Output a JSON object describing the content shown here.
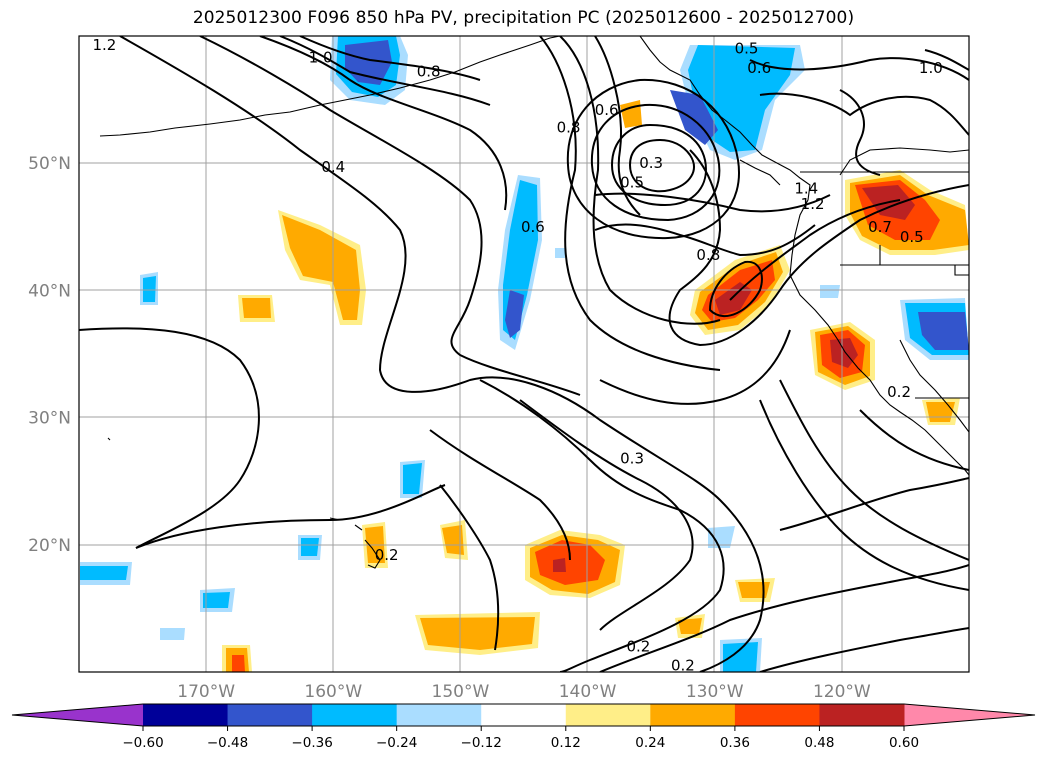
{
  "title": "2025012300 F096 850 hPa PV, precipitation PC (2025012600 - 2025012700)",
  "map": {
    "lon_range": [
      -180,
      -110
    ],
    "lat_range": [
      10,
      60
    ],
    "lat_ticks": [
      {
        "value": 20,
        "label": "20°N"
      },
      {
        "value": 30,
        "label": "30°N"
      },
      {
        "value": 40,
        "label": "40°N"
      },
      {
        "value": 50,
        "label": "50°N"
      }
    ],
    "lon_ticks": [
      {
        "value": -170,
        "label": "170°W"
      },
      {
        "value": -160,
        "label": "160°W"
      },
      {
        "value": -150,
        "label": "150°W"
      },
      {
        "value": -140,
        "label": "140°W"
      },
      {
        "value": -130,
        "label": "130°W"
      },
      {
        "value": -120,
        "label": "120°W"
      }
    ],
    "grid": true,
    "contour_labels": [
      {
        "text": "1.2",
        "lon": -178.0,
        "lat": 59.3
      },
      {
        "text": "1.0",
        "lon": -161.0,
        "lat": 58.3
      },
      {
        "text": "0.8",
        "lon": -152.5,
        "lat": 57.2
      },
      {
        "text": "0.4",
        "lon": -160.0,
        "lat": 49.7
      },
      {
        "text": "0.8",
        "lon": -141.5,
        "lat": 52.8
      },
      {
        "text": "0.6",
        "lon": -138.5,
        "lat": 54.2
      },
      {
        "text": "0.5",
        "lon": -127.5,
        "lat": 59.0
      },
      {
        "text": "0.6",
        "lon": -126.5,
        "lat": 57.5
      },
      {
        "text": "0.3",
        "lon": -135.0,
        "lat": 50.0
      },
      {
        "text": "0.5",
        "lon": -136.5,
        "lat": 48.5
      },
      {
        "text": "1.0",
        "lon": -113.0,
        "lat": 57.5
      },
      {
        "text": "1.4",
        "lon": -122.8,
        "lat": 48.0
      },
      {
        "text": "1.2",
        "lon": -122.3,
        "lat": 46.8
      },
      {
        "text": "0.7",
        "lon": -117.0,
        "lat": 45.0
      },
      {
        "text": "0.5",
        "lon": -114.5,
        "lat": 44.2
      },
      {
        "text": "0.8",
        "lon": -130.5,
        "lat": 42.8
      },
      {
        "text": "0.6",
        "lon": -144.3,
        "lat": 45.0
      },
      {
        "text": "0.3",
        "lon": -136.5,
        "lat": 26.8
      },
      {
        "text": "0.2",
        "lon": -155.8,
        "lat": 19.2
      },
      {
        "text": "0.2",
        "lon": -136.0,
        "lat": 12.0
      },
      {
        "text": "0.2",
        "lon": -132.5,
        "lat": 10.5
      },
      {
        "text": "0.2",
        "lon": -115.5,
        "lat": 32.0
      }
    ]
  },
  "colorbar": {
    "ticks": [
      "−0.60",
      "−0.48",
      "−0.36",
      "−0.24",
      "−0.12",
      "0.12",
      "0.24",
      "0.36",
      "0.48",
      "0.60"
    ],
    "colors": [
      "#9933cc",
      "#000099",
      "#3355cc",
      "#00bbff",
      "#aaddff",
      "#ffffff",
      "#ffee88",
      "#ffaa00",
      "#ff4400",
      "#bb2222",
      "#ff88aa"
    ]
  }
}
